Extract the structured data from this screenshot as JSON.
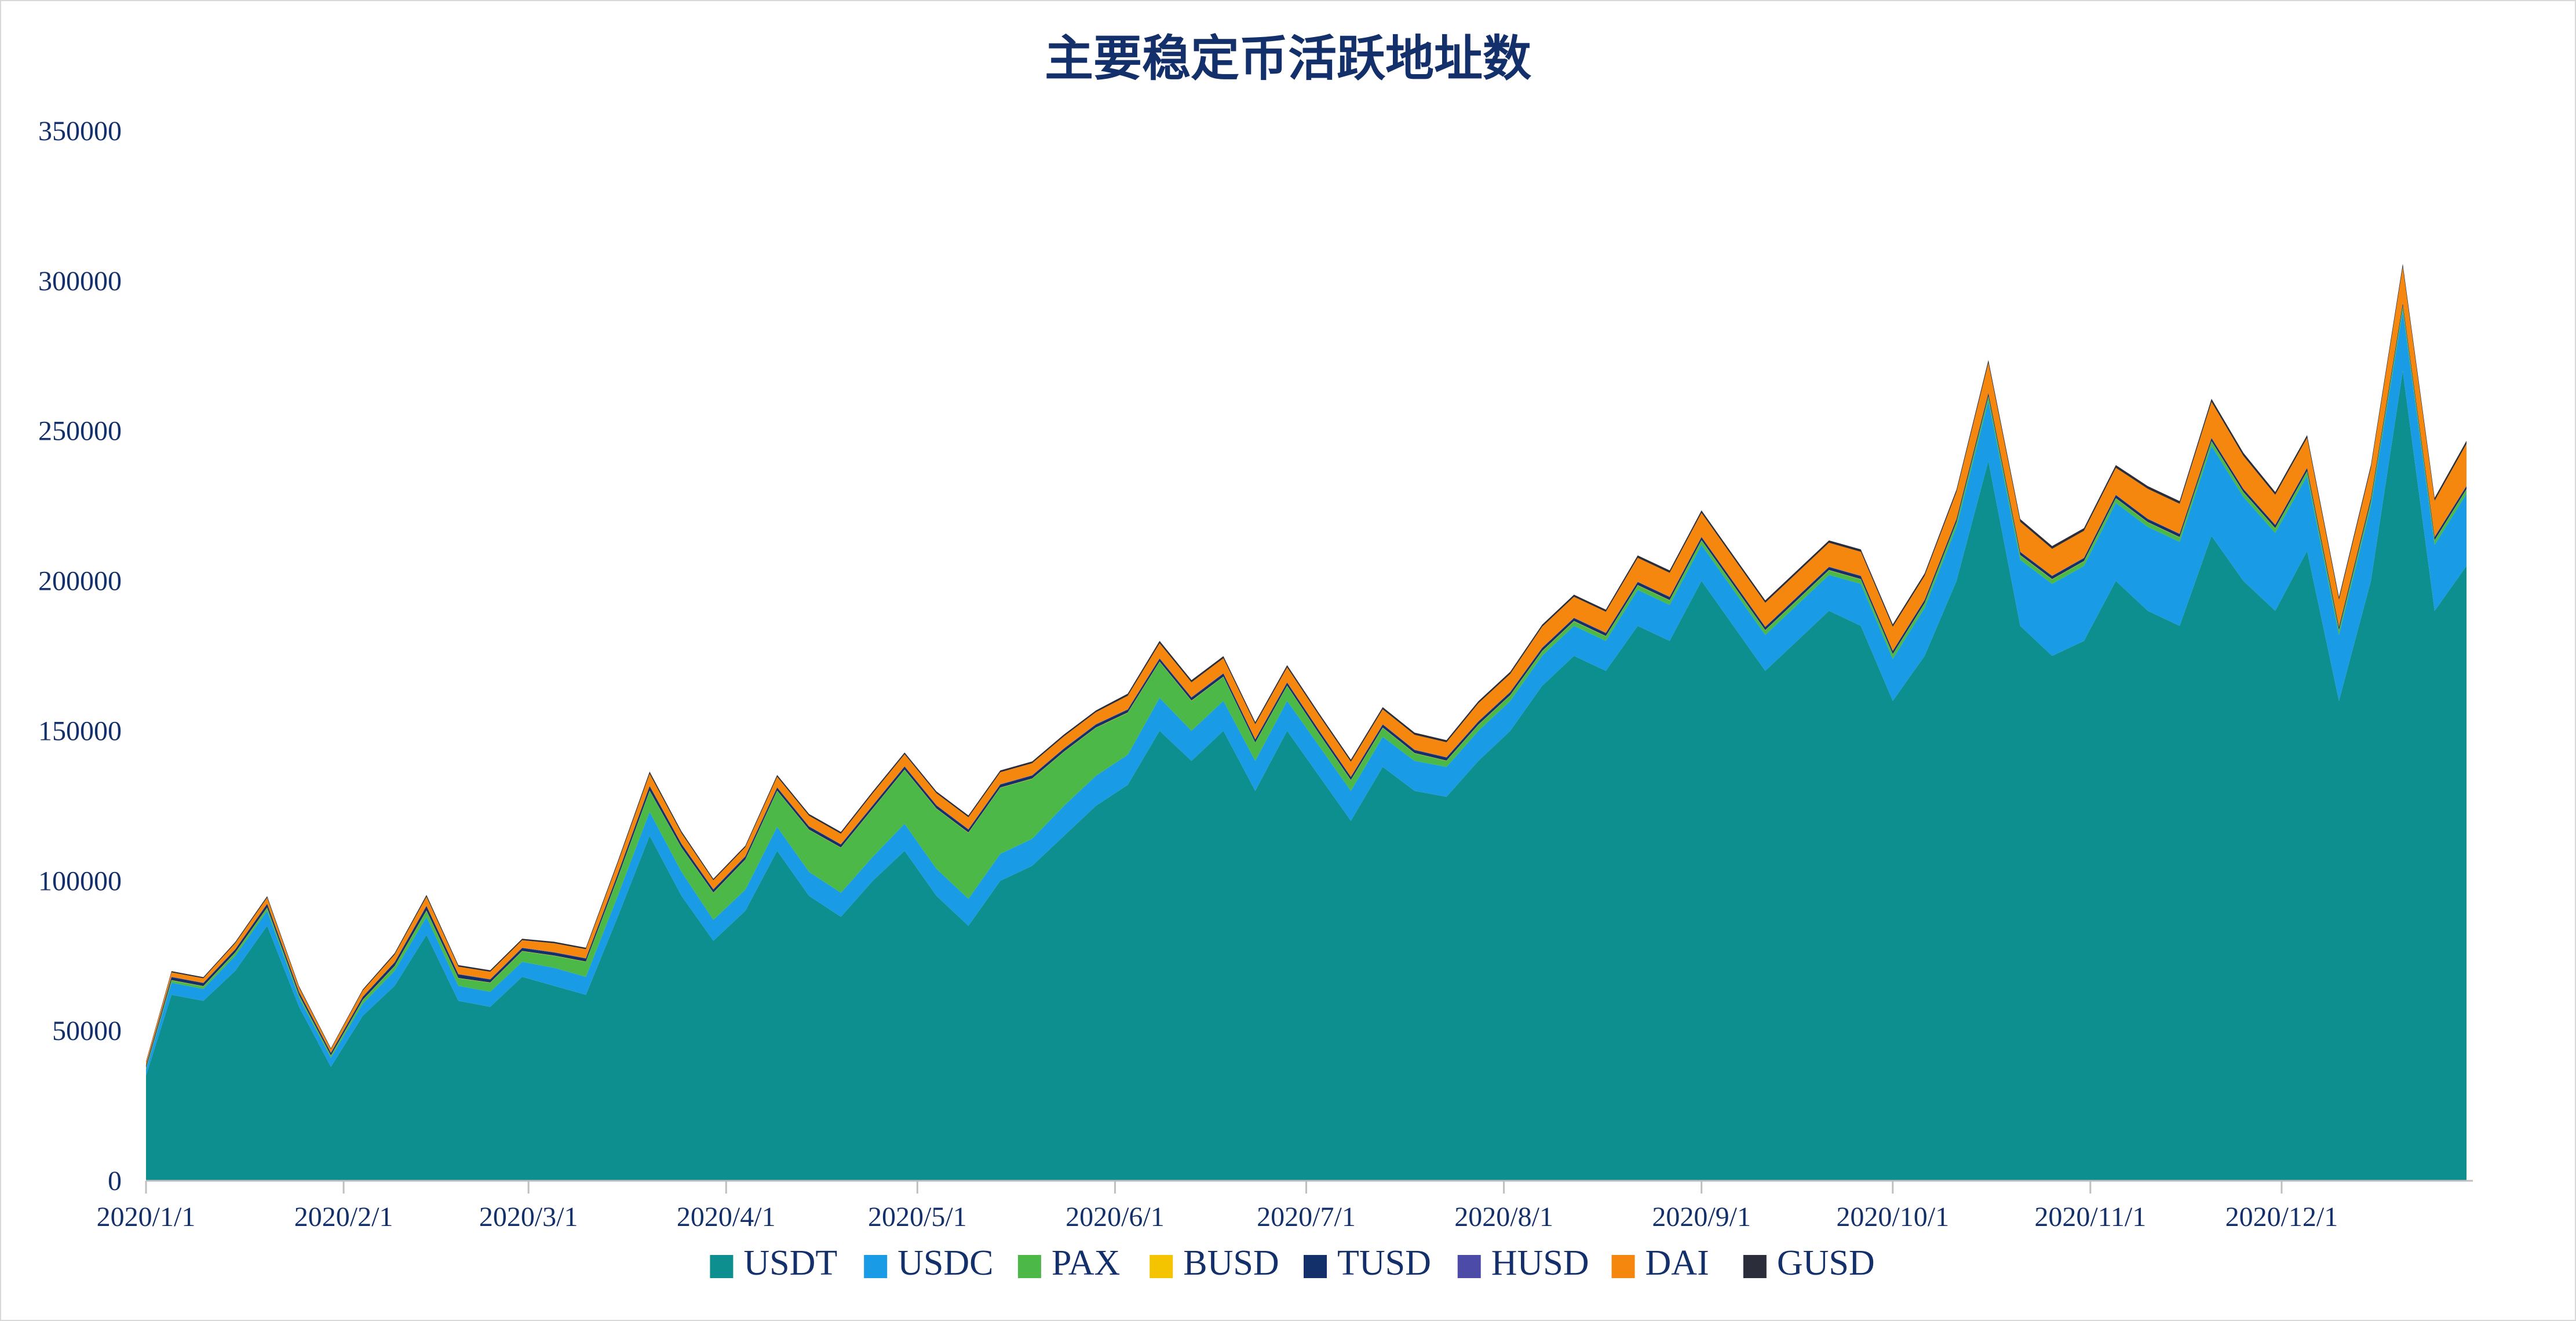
{
  "chart_data": {
    "type": "area",
    "stacked": true,
    "title": "主要稳定币活跃地址数",
    "xlabel": "",
    "ylabel": "",
    "ylim": [
      0,
      350000
    ],
    "yticks": [
      0,
      50000,
      100000,
      150000,
      200000,
      250000,
      300000,
      350000
    ],
    "ytick_labels": [
      "0",
      "50000",
      "100000",
      "150000",
      "200000",
      "250000",
      "300000",
      "350000"
    ],
    "xticks": [
      "2020/1/1",
      "2020/2/1",
      "2020/3/1",
      "2020/4/1",
      "2020/5/1",
      "2020/6/1",
      "2020/7/1",
      "2020/8/1",
      "2020/9/1",
      "2020/10/1",
      "2020/11/1",
      "2020/12/1"
    ],
    "x": [
      "2020/1/1",
      "2020/1/5",
      "2020/1/10",
      "2020/1/15",
      "2020/1/20",
      "2020/1/25",
      "2020/1/30",
      "2020/2/4",
      "2020/2/9",
      "2020/2/14",
      "2020/2/19",
      "2020/2/24",
      "2020/2/29",
      "2020/3/5",
      "2020/3/10",
      "2020/3/15",
      "2020/3/20",
      "2020/3/25",
      "2020/3/30",
      "2020/4/4",
      "2020/4/9",
      "2020/4/14",
      "2020/4/19",
      "2020/4/24",
      "2020/4/29",
      "2020/5/4",
      "2020/5/9",
      "2020/5/14",
      "2020/5/19",
      "2020/5/24",
      "2020/5/29",
      "2020/6/3",
      "2020/6/8",
      "2020/6/13",
      "2020/6/18",
      "2020/6/23",
      "2020/6/28",
      "2020/7/3",
      "2020/7/8",
      "2020/7/13",
      "2020/7/18",
      "2020/7/23",
      "2020/7/28",
      "2020/8/2",
      "2020/8/7",
      "2020/8/12",
      "2020/8/17",
      "2020/8/22",
      "2020/8/27",
      "2020/9/1",
      "2020/9/6",
      "2020/9/11",
      "2020/9/16",
      "2020/9/21",
      "2020/9/26",
      "2020/10/1",
      "2020/10/6",
      "2020/10/11",
      "2020/10/16",
      "2020/10/21",
      "2020/10/26",
      "2020/10/31",
      "2020/11/5",
      "2020/11/10",
      "2020/11/15",
      "2020/11/20",
      "2020/11/25",
      "2020/11/30",
      "2020/12/5",
      "2020/12/10",
      "2020/12/15",
      "2020/12/20",
      "2020/12/25",
      "2020/12/30"
    ],
    "series": [
      {
        "name": "USDT",
        "color": "#0e8f8f",
        "values": [
          35000,
          62000,
          60000,
          70000,
          85000,
          58000,
          38000,
          55000,
          65000,
          82000,
          60000,
          58000,
          68000,
          65000,
          62000,
          88000,
          115000,
          95000,
          80000,
          90000,
          110000,
          95000,
          88000,
          100000,
          110000,
          95000,
          85000,
          100000,
          105000,
          115000,
          125000,
          132000,
          150000,
          140000,
          150000,
          130000,
          150000,
          135000,
          120000,
          138000,
          130000,
          128000,
          140000,
          150000,
          165000,
          175000,
          170000,
          185000,
          180000,
          200000,
          185000,
          170000,
          180000,
          190000,
          185000,
          160000,
          175000,
          200000,
          240000,
          185000,
          175000,
          180000,
          200000,
          190000,
          185000,
          215000,
          200000,
          190000,
          210000,
          160000,
          200000,
          270000,
          190000,
          205000
        ]
      },
      {
        "name": "USDC",
        "color": "#1a9be6",
        "values": [
          2000,
          4000,
          4000,
          5000,
          5000,
          3000,
          3000,
          4000,
          5000,
          6000,
          5000,
          5000,
          5000,
          6000,
          6000,
          7000,
          8000,
          8000,
          7000,
          7000,
          8000,
          8000,
          8000,
          8000,
          9000,
          9000,
          9000,
          9000,
          9000,
          10000,
          10000,
          10000,
          11000,
          10000,
          10000,
          10000,
          10000,
          10000,
          10000,
          10000,
          10000,
          10000,
          10000,
          10000,
          10000,
          10000,
          10000,
          12000,
          12000,
          12000,
          12000,
          12000,
          12000,
          12000,
          14000,
          14000,
          16000,
          18000,
          20000,
          22000,
          24000,
          25000,
          26000,
          28000,
          28000,
          30000,
          28000,
          26000,
          25000,
          22000,
          25000,
          20000,
          22000,
          24000
        ]
      },
      {
        "name": "PAX",
        "color": "#4cb848",
        "values": [
          500,
          800,
          800,
          1000,
          1000,
          800,
          700,
          1200,
          1500,
          2000,
          2500,
          3000,
          3500,
          4000,
          5000,
          6000,
          7000,
          8000,
          9000,
          10000,
          12000,
          14000,
          15000,
          16000,
          18000,
          20000,
          22000,
          22000,
          20000,
          18000,
          16000,
          14000,
          12000,
          10000,
          8000,
          6000,
          5000,
          4000,
          3500,
          3000,
          2500,
          2000,
          2000,
          1800,
          1500,
          1500,
          1500,
          1500,
          1500,
          1500,
          1500,
          1500,
          1500,
          1500,
          1500,
          1500,
          1500,
          1500,
          1500,
          1500,
          1500,
          1500,
          1500,
          1500,
          1500,
          1500,
          1500,
          1500,
          1500,
          1500,
          1500,
          1500,
          1500,
          1500
        ]
      },
      {
        "name": "BUSD",
        "color": "#f5c400",
        "values": [
          100,
          100,
          100,
          100,
          100,
          100,
          100,
          100,
          100,
          100,
          100,
          100,
          100,
          100,
          100,
          100,
          100,
          100,
          100,
          100,
          100,
          100,
          100,
          100,
          100,
          100,
          100,
          100,
          100,
          100,
          100,
          100,
          100,
          100,
          100,
          100,
          100,
          100,
          100,
          100,
          100,
          100,
          100,
          100,
          100,
          100,
          100,
          100,
          100,
          100,
          100,
          100,
          100,
          100,
          100,
          100,
          100,
          100,
          100,
          100,
          100,
          100,
          100,
          100,
          100,
          100,
          100,
          100,
          100,
          100,
          100,
          100,
          100,
          100
        ]
      },
      {
        "name": "TUSD",
        "color": "#14306b",
        "values": [
          800,
          1000,
          1000,
          1000,
          1200,
          1000,
          800,
          1000,
          1200,
          1500,
          1200,
          1000,
          1000,
          1000,
          1000,
          1200,
          1500,
          1200,
          1000,
          1000,
          1000,
          1000,
          1000,
          1000,
          1000,
          1000,
          1000,
          1000,
          1000,
          1000,
          1000,
          1000,
          1000,
          1000,
          1000,
          1000,
          1000,
          1000,
          1000,
          1000,
          1000,
          1000,
          1000,
          1000,
          1000,
          1000,
          1000,
          1000,
          1000,
          1000,
          1000,
          1000,
          1000,
          1000,
          1000,
          1000,
          1000,
          1000,
          1000,
          1000,
          1000,
          1000,
          1000,
          1000,
          1000,
          1000,
          1000,
          1000,
          1000,
          1000,
          1000,
          1000,
          1000,
          1000
        ]
      },
      {
        "name": "HUSD",
        "color": "#4c4ca8",
        "values": [
          100,
          100,
          100,
          100,
          100,
          100,
          100,
          100,
          100,
          100,
          100,
          100,
          100,
          100,
          100,
          100,
          100,
          100,
          100,
          100,
          100,
          100,
          100,
          100,
          100,
          100,
          100,
          100,
          100,
          100,
          100,
          100,
          100,
          100,
          100,
          100,
          100,
          100,
          100,
          100,
          100,
          100,
          100,
          100,
          100,
          100,
          100,
          100,
          100,
          100,
          100,
          100,
          100,
          100,
          100,
          100,
          100,
          100,
          100,
          100,
          100,
          100,
          100,
          100,
          100,
          100,
          100,
          100,
          100,
          100,
          100,
          100,
          100,
          100
        ]
      },
      {
        "name": "DAI",
        "color": "#f5870f",
        "values": [
          1000,
          1500,
          1500,
          2000,
          2000,
          1500,
          1200,
          2000,
          2500,
          3000,
          2500,
          2500,
          2500,
          3000,
          3000,
          3500,
          4000,
          3500,
          3000,
          3000,
          3500,
          3500,
          3500,
          4000,
          4000,
          4000,
          4000,
          4000,
          4000,
          4000,
          4000,
          4500,
          5000,
          5000,
          5000,
          5000,
          5000,
          5000,
          5000,
          5000,
          5000,
          5000,
          6000,
          6000,
          7000,
          7000,
          7000,
          8000,
          8000,
          8000,
          8000,
          8000,
          8000,
          8000,
          8000,
          8000,
          8000,
          9000,
          10000,
          10000,
          9000,
          9000,
          9000,
          10000,
          10000,
          12000,
          11000,
          10000,
          10000,
          9000,
          10000,
          12000,
          12000,
          14000
        ]
      },
      {
        "name": "GUSD",
        "color": "#2b2e3a",
        "values": [
          300,
          400,
          400,
          400,
          500,
          400,
          300,
          400,
          500,
          600,
          500,
          500,
          500,
          500,
          500,
          600,
          700,
          600,
          500,
          500,
          600,
          600,
          600,
          600,
          600,
          600,
          600,
          600,
          600,
          600,
          600,
          700,
          800,
          700,
          700,
          700,
          700,
          700,
          700,
          700,
          700,
          700,
          700,
          700,
          700,
          700,
          700,
          800,
          800,
          800,
          800,
          800,
          800,
          800,
          800,
          800,
          800,
          800,
          900,
          900,
          900,
          900,
          900,
          900,
          900,
          1000,
          1000,
          900,
          900,
          900,
          900,
          1000,
          1000,
          1000
        ]
      }
    ],
    "legend": {
      "placement": "bottom"
    },
    "grid": false
  }
}
